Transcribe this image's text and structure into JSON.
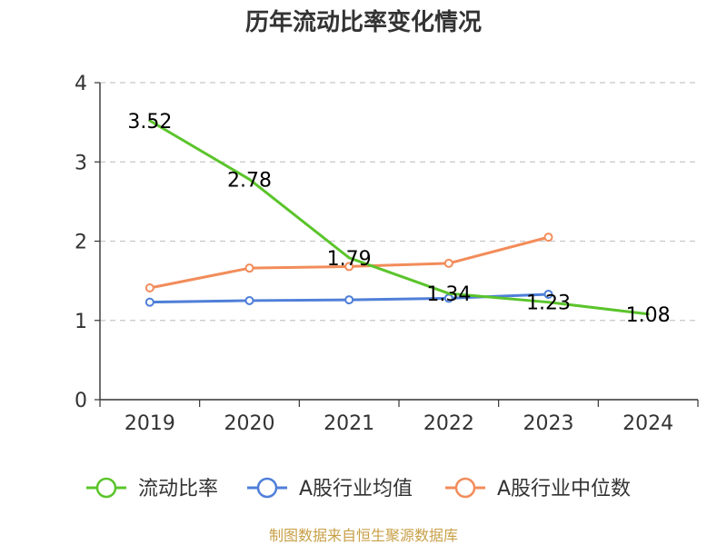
{
  "chart_data": {
    "type": "line",
    "title": "历年流动比率变化情况",
    "categories": [
      "2019",
      "2020",
      "2021",
      "2022",
      "2023",
      "2024"
    ],
    "ylim": [
      0,
      4
    ],
    "yticks": [
      "0",
      "1",
      "2",
      "3",
      "4"
    ],
    "grid": true,
    "legend_position": "bottom",
    "series": [
      {
        "name": "流动比率",
        "color": "#5bc42b",
        "values": [
          3.52,
          2.78,
          1.79,
          1.34,
          1.23,
          1.08
        ],
        "labels": [
          "3.52",
          "2.78",
          "1.79",
          "1.34",
          "1.23",
          "1.08"
        ],
        "show_markers": false
      },
      {
        "name": "A股行业均值",
        "color": "#4f7fd8",
        "values": [
          1.23,
          1.25,
          1.26,
          1.28,
          1.33,
          null
        ],
        "show_markers": true
      },
      {
        "name": "A股行业中位数",
        "color": "#f28c5a",
        "values": [
          1.41,
          1.66,
          1.68,
          1.72,
          2.05,
          null
        ],
        "show_markers": true
      }
    ]
  },
  "source": "制图数据来自恒生聚源数据库"
}
